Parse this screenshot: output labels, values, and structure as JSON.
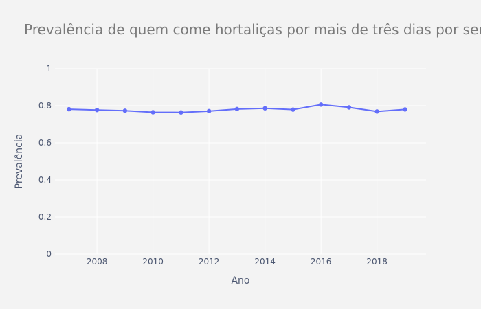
{
  "chart_data": {
    "type": "line",
    "title": "Prevalência de quem come hortaliças por mais de três dias por semana",
    "xlabel": "Ano",
    "ylabel": "Prevalência",
    "xlim": [
      2006.5,
      2019.75
    ],
    "ylim": [
      0,
      1
    ],
    "xticks": [
      2008,
      2010,
      2012,
      2014,
      2016,
      2018
    ],
    "yticks": [
      0,
      0.2,
      0.4,
      0.6,
      0.8,
      1
    ],
    "ytick_labels": [
      "0",
      "0.2",
      "0.4",
      "0.6",
      "0.8",
      "1"
    ],
    "grid": true,
    "series": [
      {
        "color": "#636efa",
        "x": [
          2007,
          2008,
          2009,
          2010,
          2011,
          2012,
          2013,
          2014,
          2015,
          2016,
          2017,
          2018,
          2019
        ],
        "y": [
          0.781,
          0.777,
          0.773,
          0.765,
          0.764,
          0.771,
          0.782,
          0.786,
          0.779,
          0.806,
          0.791,
          0.769,
          0.78
        ]
      }
    ]
  }
}
